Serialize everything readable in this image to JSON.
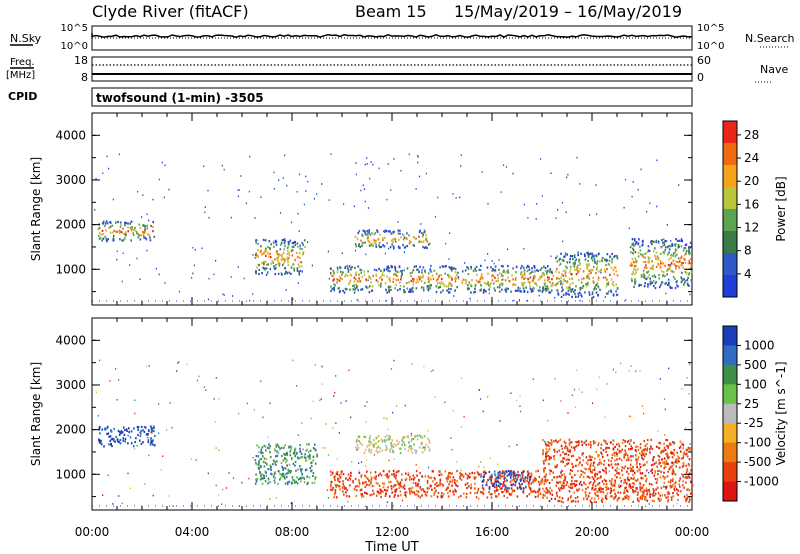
{
  "header": {
    "title": "Clyde River (fitACF)",
    "beam": "Beam 15",
    "dates": "15/May/2019 – 16/May/2019"
  },
  "strip_sky": {
    "left_label": "N.Sky",
    "left_ticks": [
      "10^5",
      "10^0"
    ],
    "right_label": "N.Search",
    "right_ticks": [
      "10^5",
      "10^0"
    ]
  },
  "strip_freq": {
    "left_label_top": "Freq.",
    "left_label_unit": "[MHz]",
    "left_ticks": [
      "18",
      "8"
    ],
    "right_label": "Nave",
    "right_ticks": [
      "60",
      "0"
    ]
  },
  "cpid": {
    "label": "CPID",
    "program": "twofsound (1-min) -3505"
  },
  "chart_data": [
    {
      "type": "heatmap",
      "panel": "power",
      "ylabel": "Slant Range [km]",
      "xlabel": "Time UT",
      "y_ticks": [
        "1000",
        "2000",
        "3000",
        "4000"
      ],
      "ylim": [
        200,
        4500
      ],
      "xlim_hours": [
        0,
        24
      ],
      "colorbar": {
        "label": "Power [dB]",
        "ticks": [
          "4",
          "8",
          "12",
          "16",
          "20",
          "24",
          "28"
        ],
        "range": [
          0,
          30
        ]
      },
      "echo_regions": [
        {
          "t0": 0.2,
          "t1": 2.5,
          "r0": 1650,
          "r1": 2100
        },
        {
          "t0": 6.5,
          "t1": 8.5,
          "r0": 900,
          "r1": 1700
        },
        {
          "t0": 9.5,
          "t1": 18.5,
          "r0": 500,
          "r1": 1100
        },
        {
          "t0": 10.5,
          "t1": 13.5,
          "r0": 1500,
          "r1": 1900
        },
        {
          "t0": 18.5,
          "t1": 21.0,
          "r0": 400,
          "r1": 1400
        },
        {
          "t0": 21.5,
          "t1": 24.0,
          "r0": 600,
          "r1": 1700
        }
      ]
    },
    {
      "type": "heatmap",
      "panel": "velocity",
      "ylabel": "Slant Range [km]",
      "xlabel": "Time UT",
      "y_ticks": [
        "1000",
        "2000",
        "3000",
        "4000"
      ],
      "ylim": [
        200,
        4500
      ],
      "xlim_hours": [
        0,
        24
      ],
      "colorbar": {
        "label": "Velocity [m s^-1]",
        "ticks": [
          "1000",
          "500",
          "100",
          "25",
          "-25",
          "-100",
          "-500",
          "-1000"
        ]
      },
      "echo_regions": [
        {
          "t0": 0.2,
          "t1": 2.5,
          "r0": 1650,
          "r1": 2100,
          "velocity": "1000"
        },
        {
          "t0": 6.5,
          "t1": 9.0,
          "r0": 800,
          "r1": 1700,
          "velocity": "100"
        },
        {
          "t0": 9.5,
          "t1": 18.0,
          "r0": 500,
          "r1": 1100,
          "velocity": "-500"
        },
        {
          "t0": 10.5,
          "t1": 13.5,
          "r0": 1500,
          "r1": 1900,
          "velocity": "25"
        },
        {
          "t0": 15.5,
          "t1": 17.5,
          "r0": 700,
          "r1": 1100,
          "velocity": "1000"
        },
        {
          "t0": 18.0,
          "t1": 24.0,
          "r0": 400,
          "r1": 1800,
          "velocity": "-500"
        }
      ]
    }
  ],
  "x_axis": {
    "ticks": [
      "00:00",
      "04:00",
      "08:00",
      "12:00",
      "16:00",
      "20:00",
      "00:00"
    ],
    "label": "Time UT"
  },
  "colors": {
    "power_scale": [
      "#1f3fd8",
      "#2f58c8",
      "#3c7a4a",
      "#5aa452",
      "#b9c53a",
      "#f4a21a",
      "#f06a10",
      "#e8271a"
    ],
    "velocity_scale": [
      "#1b3fb8",
      "#2f6ec0",
      "#3f8f46",
      "#69c14a",
      "#bbbbbb",
      "#f4b022",
      "#f07a12",
      "#e8410e",
      "#dd1414"
    ]
  }
}
